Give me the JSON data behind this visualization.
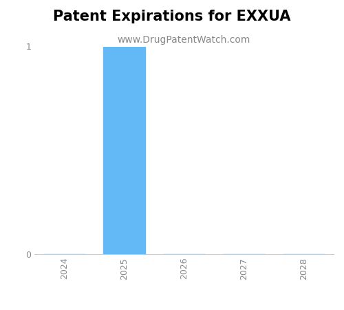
{
  "title": "Patent Expirations for EXXUA",
  "subtitle": "www.DrugPatentWatch.com",
  "years": [
    2024,
    2025,
    2026,
    2027,
    2028
  ],
  "values": [
    0,
    1,
    0,
    0,
    0
  ],
  "bar_color": "#63B8F6",
  "bar_width": 0.7,
  "ylim": [
    0,
    1.0
  ],
  "yticks": [
    0,
    1
  ],
  "background_color": "#ffffff",
  "title_fontsize": 15,
  "subtitle_fontsize": 10,
  "tick_fontsize": 9,
  "spine_color": "#cccccc",
  "tick_color": "#888888"
}
